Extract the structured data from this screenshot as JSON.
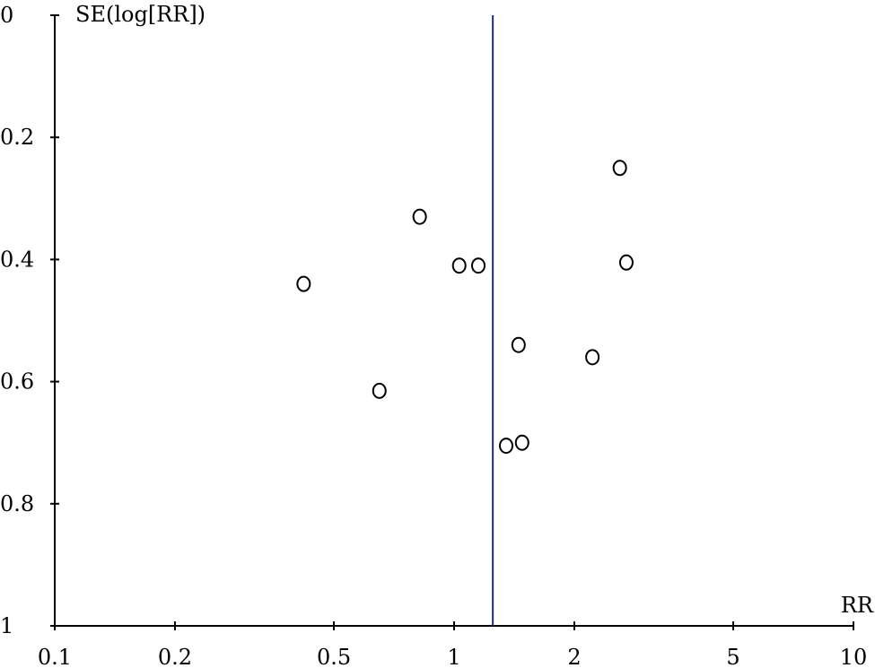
{
  "chart_data": {
    "type": "scatter",
    "xlabel": "RR",
    "ylabel": "SE(log[RR])",
    "x_scale": "log",
    "xlim": [
      0.1,
      10
    ],
    "ylim": [
      0,
      1
    ],
    "y_inverted": true,
    "x_ticks": [
      {
        "value": 0.1,
        "label": "0.1"
      },
      {
        "value": 0.2,
        "label": "0.2"
      },
      {
        "value": 0.5,
        "label": "0.5"
      },
      {
        "value": 1,
        "label": "1"
      },
      {
        "value": 2,
        "label": "2"
      },
      {
        "value": 5,
        "label": "5"
      },
      {
        "value": 10,
        "label": "10"
      }
    ],
    "y_ticks": [
      {
        "value": 0,
        "label": "0"
      },
      {
        "value": 0.2,
        "label": "0.2"
      },
      {
        "value": 0.4,
        "label": "0.4"
      },
      {
        "value": 0.6,
        "label": "0.6"
      },
      {
        "value": 0.8,
        "label": "0.8"
      },
      {
        "value": 1,
        "label": "1"
      }
    ],
    "reference_line_x": 1.25,
    "reference_line_color": "#1f2f7a",
    "marker": "open-circle",
    "points": [
      {
        "x": 2.6,
        "y": 0.25
      },
      {
        "x": 0.82,
        "y": 0.33
      },
      {
        "x": 1.03,
        "y": 0.41
      },
      {
        "x": 1.15,
        "y": 0.41
      },
      {
        "x": 2.7,
        "y": 0.405
      },
      {
        "x": 0.42,
        "y": 0.44
      },
      {
        "x": 1.45,
        "y": 0.54
      },
      {
        "x": 2.22,
        "y": 0.56
      },
      {
        "x": 0.65,
        "y": 0.615
      },
      {
        "x": 1.48,
        "y": 0.7
      },
      {
        "x": 1.35,
        "y": 0.705
      }
    ]
  }
}
